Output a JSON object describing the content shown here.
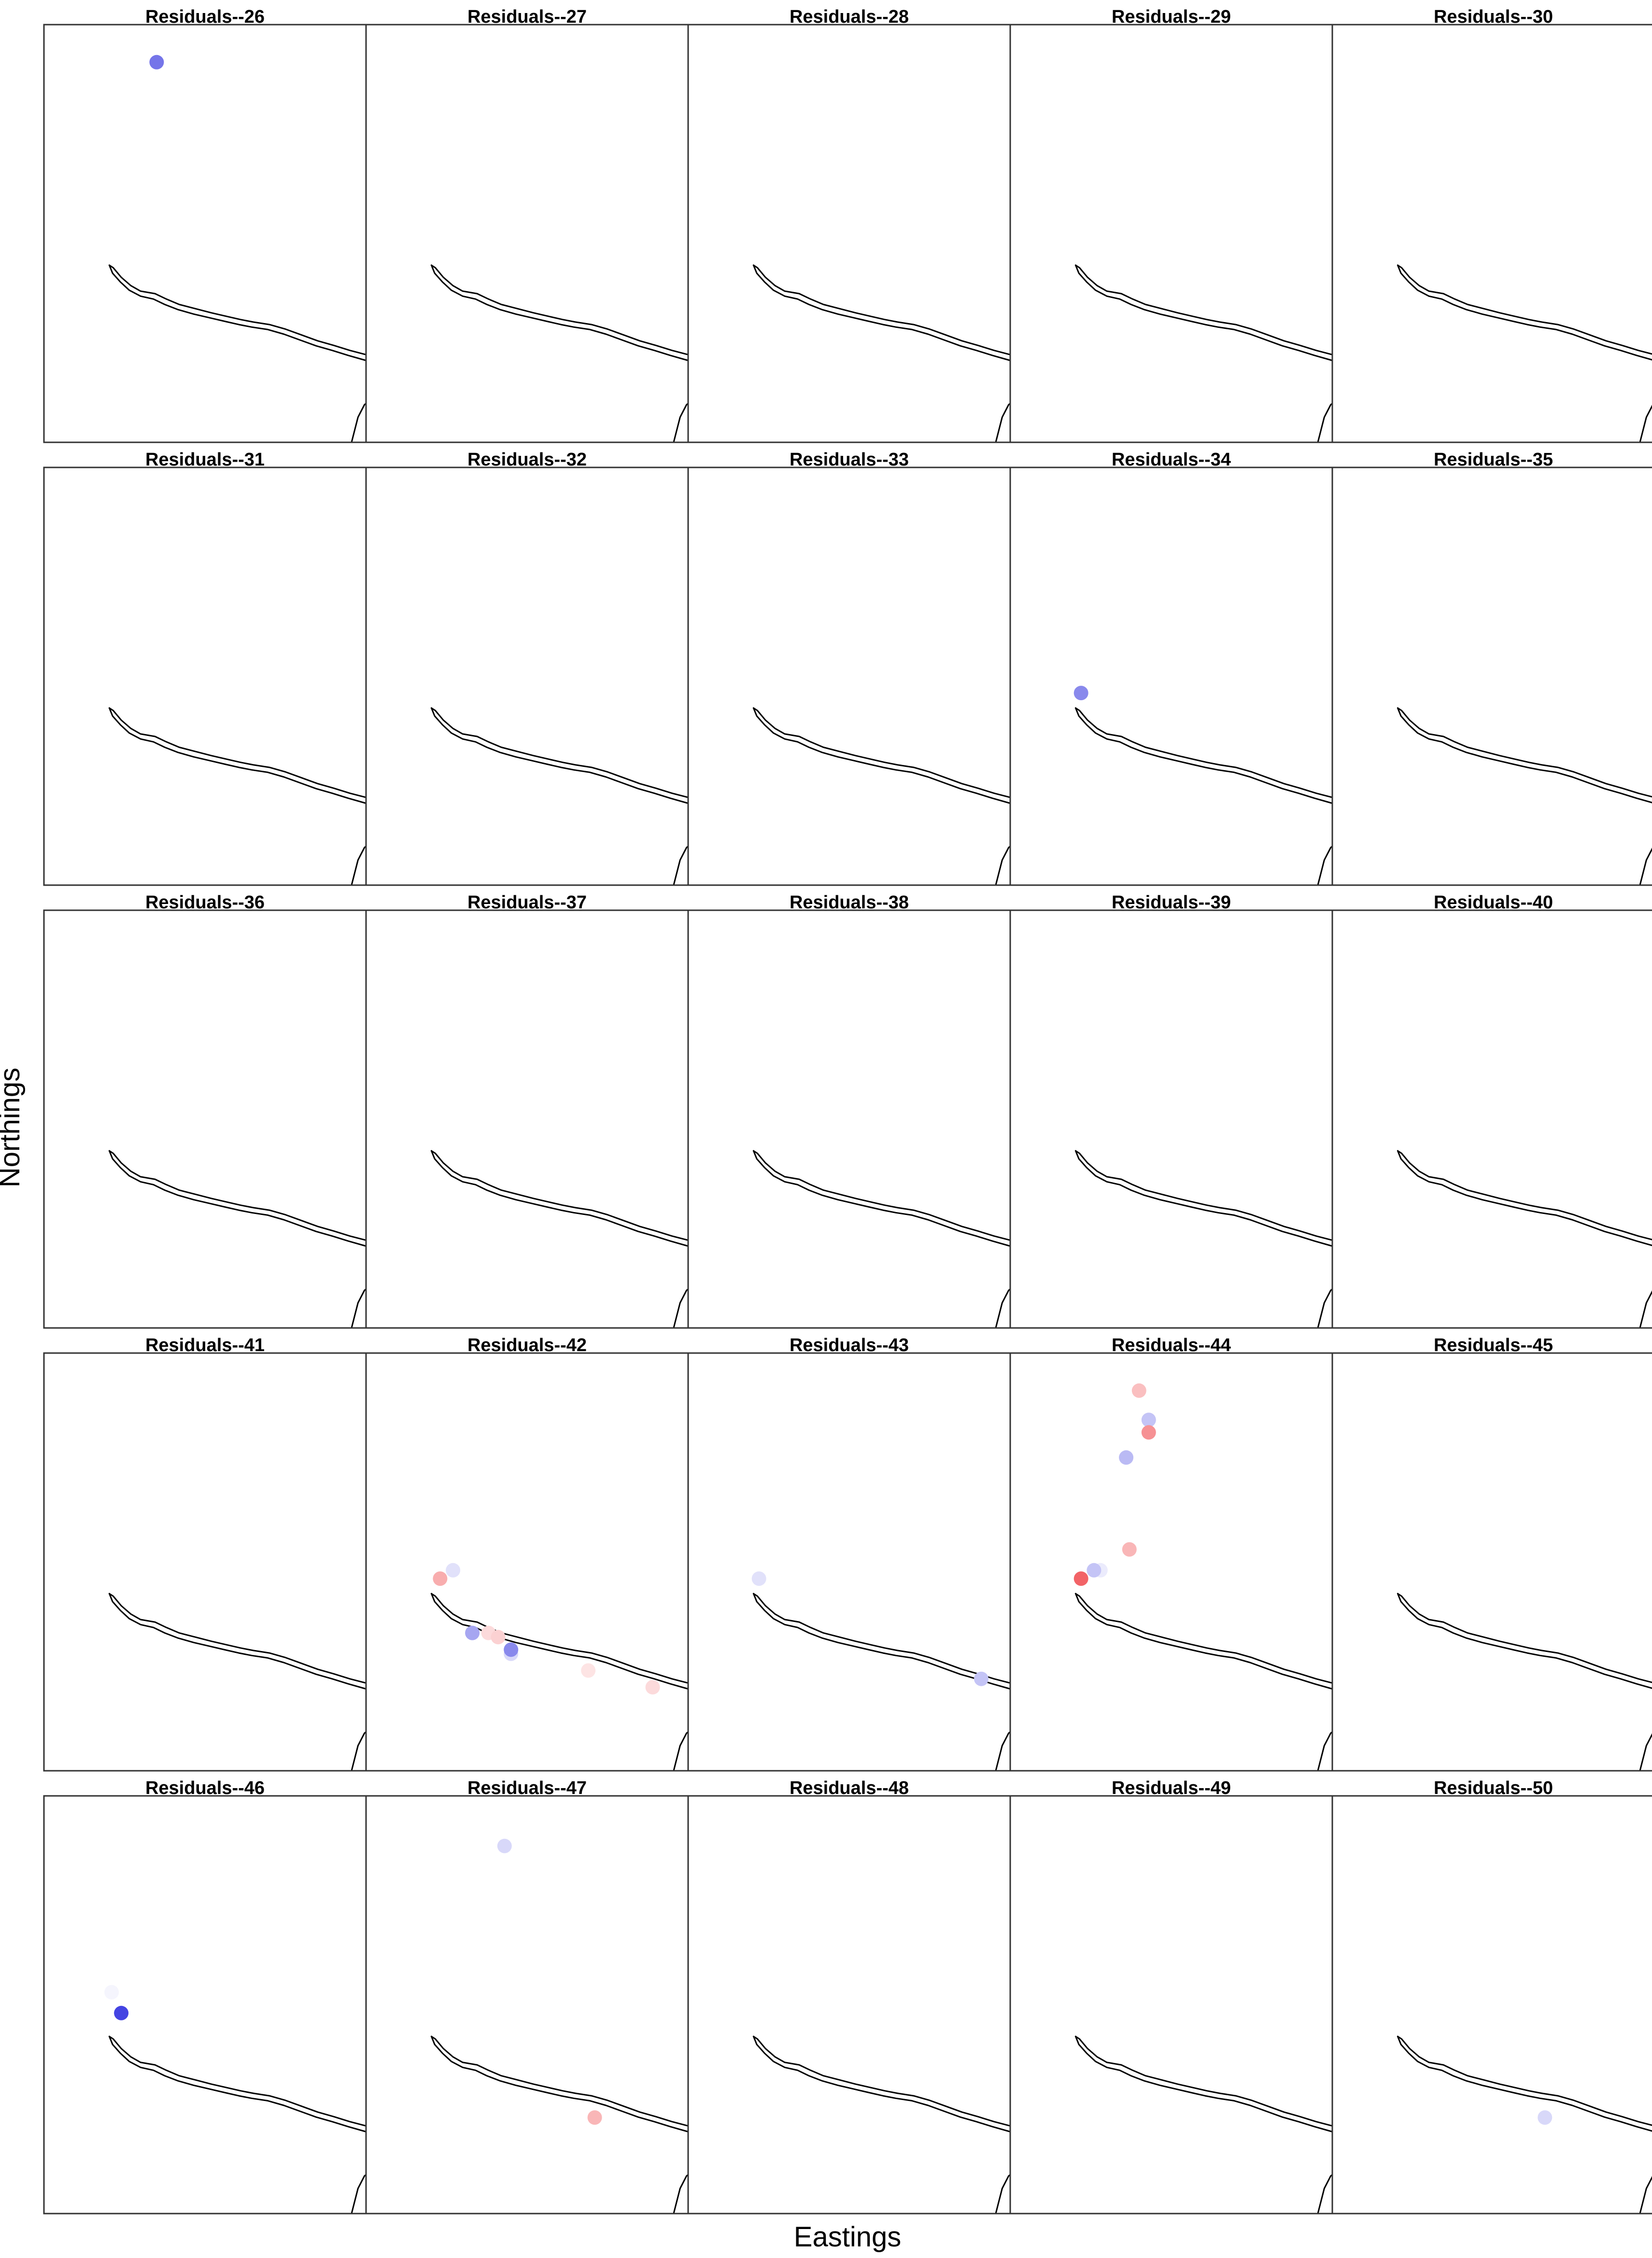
{
  "chart_data": {
    "type": "scatter",
    "subtype": "faceted map of residuals",
    "xlabel": "Eastings",
    "ylabel": "Northings",
    "grid": false,
    "legend": "none",
    "layout": {
      "rows": 5,
      "cols": 5
    },
    "colors": {
      "positive_residual": "#f0484c",
      "negative_residual": "#3a3ae0",
      "neutral": "#ffffff",
      "coastline": "#000000",
      "frame": "#333333"
    },
    "panels": [
      {
        "title": "Residuals--26",
        "points": [
          {
            "x": 0.35,
            "y": 0.91,
            "residual": -0.7
          }
        ]
      },
      {
        "title": "Residuals--27",
        "points": []
      },
      {
        "title": "Residuals--28",
        "points": []
      },
      {
        "title": "Residuals--29",
        "points": []
      },
      {
        "title": "Residuals--30",
        "points": []
      },
      {
        "title": "Residuals--31",
        "points": []
      },
      {
        "title": "Residuals--32",
        "points": []
      },
      {
        "title": "Residuals--33",
        "points": []
      },
      {
        "title": "Residuals--34",
        "points": [
          {
            "x": 0.22,
            "y": 0.46,
            "residual": -0.6
          }
        ]
      },
      {
        "title": "Residuals--35",
        "points": []
      },
      {
        "title": "Residuals--36",
        "points": []
      },
      {
        "title": "Residuals--37",
        "points": []
      },
      {
        "title": "Residuals--38",
        "points": []
      },
      {
        "title": "Residuals--39",
        "points": []
      },
      {
        "title": "Residuals--40",
        "points": []
      },
      {
        "title": "Residuals--41",
        "points": []
      },
      {
        "title": "Residuals--42",
        "points": [
          {
            "x": 0.23,
            "y": 0.46,
            "residual": 0.45
          },
          {
            "x": 0.27,
            "y": 0.48,
            "residual": -0.15
          },
          {
            "x": 0.33,
            "y": 0.33,
            "residual": -0.45
          },
          {
            "x": 0.38,
            "y": 0.33,
            "residual": 0.2
          },
          {
            "x": 0.41,
            "y": 0.32,
            "residual": 0.25
          },
          {
            "x": 0.45,
            "y": 0.28,
            "residual": -0.2
          },
          {
            "x": 0.45,
            "y": 0.29,
            "residual": -0.6
          },
          {
            "x": 0.69,
            "y": 0.24,
            "residual": 0.15
          },
          {
            "x": 0.89,
            "y": 0.2,
            "residual": 0.2
          }
        ]
      },
      {
        "title": "Residuals--43",
        "points": [
          {
            "x": 0.22,
            "y": 0.46,
            "residual": -0.15
          },
          {
            "x": 0.91,
            "y": 0.22,
            "residual": -0.3
          }
        ]
      },
      {
        "title": "Residuals--44",
        "points": [
          {
            "x": 0.4,
            "y": 0.91,
            "residual": 0.35
          },
          {
            "x": 0.43,
            "y": 0.84,
            "residual": -0.3
          },
          {
            "x": 0.43,
            "y": 0.81,
            "residual": 0.6
          },
          {
            "x": 0.36,
            "y": 0.75,
            "residual": -0.35
          },
          {
            "x": 0.37,
            "y": 0.53,
            "residual": 0.4
          },
          {
            "x": 0.28,
            "y": 0.48,
            "residual": -0.1
          },
          {
            "x": 0.26,
            "y": 0.48,
            "residual": -0.3
          },
          {
            "x": 0.22,
            "y": 0.46,
            "residual": 0.85
          }
        ]
      },
      {
        "title": "Residuals--45",
        "points": []
      },
      {
        "title": "Residuals--46",
        "points": [
          {
            "x": 0.21,
            "y": 0.53,
            "residual": -0.05
          },
          {
            "x": 0.24,
            "y": 0.48,
            "residual": -0.95
          }
        ]
      },
      {
        "title": "Residuals--47",
        "points": [
          {
            "x": 0.43,
            "y": 0.88,
            "residual": -0.2
          },
          {
            "x": 0.71,
            "y": 0.23,
            "residual": 0.4
          }
        ]
      },
      {
        "title": "Residuals--48",
        "points": []
      },
      {
        "title": "Residuals--49",
        "points": []
      },
      {
        "title": "Residuals--50",
        "points": [
          {
            "x": 0.66,
            "y": 0.23,
            "residual": -0.2
          }
        ]
      }
    ]
  }
}
